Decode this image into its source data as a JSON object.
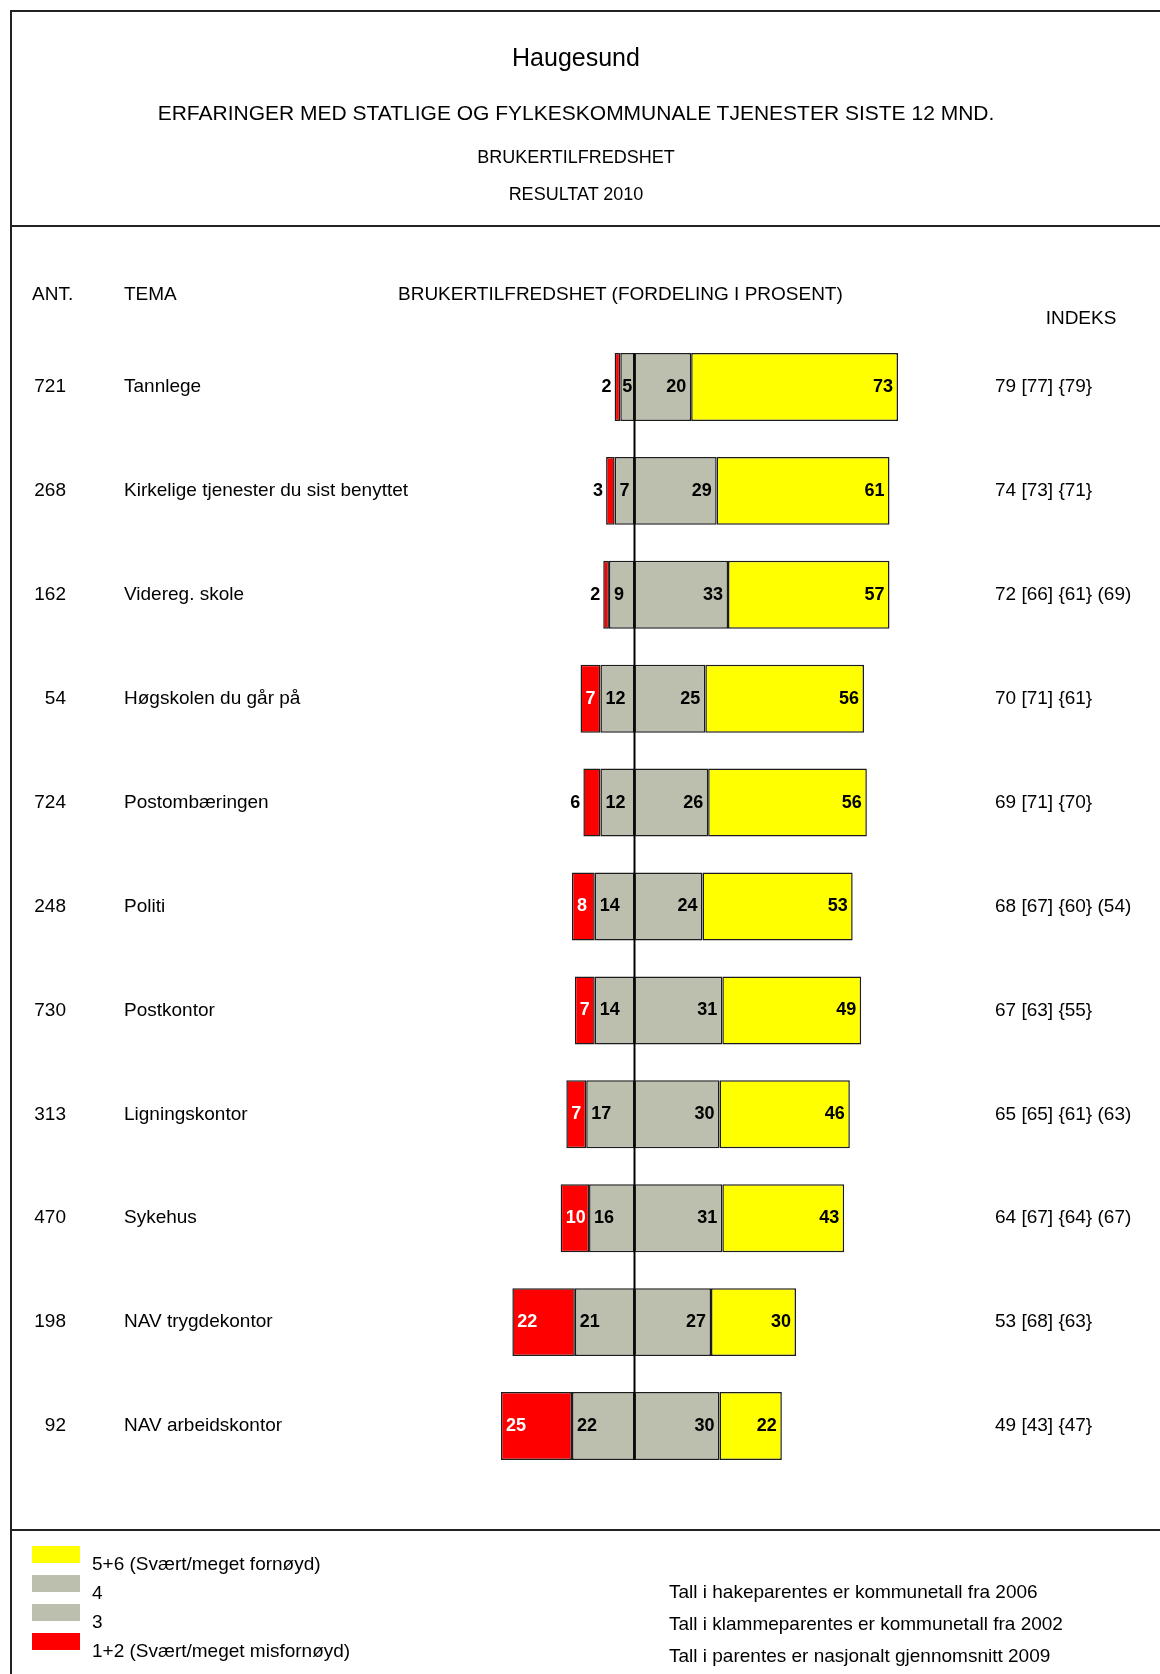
{
  "chart_data": [
    {
      "type": "bar",
      "orientation": "horizontal",
      "stacked": true,
      "title": "Haugesund",
      "subtitle": "ERFARINGER MED STATLIGE OG FYLKESKOMMUNALE TJENESTER SISTE 12 MND.\nBRUKERTILFREDSHET\nRESULTAT 2010",
      "xlabel": "BRUKERTILFREDSHET (FORDELING I PROSENT)",
      "ylabel": "TEMA",
      "categories": [
        "Tannlege",
        "Kirkelige tjenester du sist benyttet",
        "Videreg. skole",
        "Høgskolen du går på",
        "Postombæringen",
        "Politi",
        "Postkontor",
        "Ligningskontor",
        "Sykehus",
        "NAV trygdekontor",
        "NAV arbeidskontor"
      ],
      "xlim": [
        47,
        0
      ],
      "series": [
        {
          "name": "3",
          "color": "#bdbfae",
          "values": [
            5,
            7,
            9,
            12,
            12,
            14,
            14,
            17,
            16,
            21,
            22
          ]
        },
        {
          "name": "1+2 (Svært/meget misfornøyd)",
          "color": "#ff0000",
          "values": [
            2,
            3,
            2,
            7,
            6,
            8,
            7,
            7,
            10,
            22,
            25
          ]
        }
      ],
      "data_labels": true,
      "tick_labels": "y",
      "legend": "bottom left",
      "ref_lines": [
        {
          "axis": "x",
          "value": 0,
          "color": "#000000"
        }
      ],
      "annotations": [
        "ANT.",
        "721",
        "268",
        "162",
        "54",
        "724",
        "248",
        "730",
        "313",
        "470",
        "198",
        "92"
      ]
    },
    {
      "type": "bar",
      "orientation": "horizontal",
      "stacked": true,
      "categories": [
        null,
        null,
        null,
        null,
        null,
        null,
        null,
        null,
        null,
        null,
        null
      ],
      "xlim": [
        0,
        93
      ],
      "series": [
        {
          "name": "4",
          "color": "#bdbfae",
          "values": [
            20,
            29,
            33,
            25,
            26,
            24,
            31,
            30,
            31,
            27,
            30
          ]
        },
        {
          "name": "5+6 (Svært/meget fornøyd)",
          "color": "#ffff00",
          "values": [
            73,
            61,
            57,
            56,
            56,
            53,
            49,
            46,
            43,
            30,
            22
          ]
        }
      ],
      "data_labels": true,
      "tick_labels": false,
      "legend": "bottom left",
      "annotations": [
        "INDEKS",
        "79 [77] {79}",
        "74 [73] {71}",
        "72 [66] {61} (69)",
        "70 [71] {61}",
        "69 [71] {70}",
        "68 [67] {60} (54)",
        "67 [63] {55}",
        "65 [65] {61} (63)",
        "64 [67] {64} (67)",
        "53 [68] {63}",
        "49 [43] {47}",
        "Tall i hakeparentes er kommunetall fra 2006",
        "Tall i klammeparentes er kommunetall fra 2002",
        "Tall i parentes er nasjonalt gjennomsnitt 2009"
      ]
    }
  ]
}
